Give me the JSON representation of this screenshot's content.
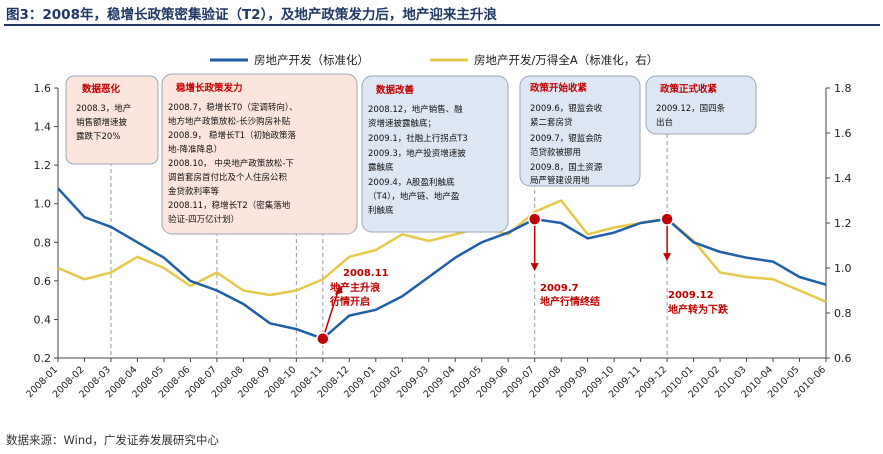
{
  "title": "图3：2008年，稳增长政策密集验证（T2），及地产政策发力后，地产迎来主升浪",
  "source": "数据来源：Wind，广发证券发展研究中心",
  "colors": {
    "series1": "#1f5fa8",
    "series2": "#e6c94a",
    "box_red_fill": "#fbe5dc",
    "box_blue_fill": "#dde6f3",
    "box_border": "#9aa7b8",
    "accent": "#c00000"
  },
  "legend": [
    "房地产开发（标准化）",
    "房地产开发/万得全A（标准化，右）"
  ],
  "boxes": [
    {
      "title": "数据恶化",
      "lines": [
        "2008.3，地产",
        "销售额增速披",
        "露跌下20%"
      ]
    },
    {
      "title": "稳增长政策发力",
      "lines": [
        "2008.7，稳增长T0（定调转向）、",
        "地方地产政策放松-长沙购房补贴",
        "2008.9，  稳增长T1（初始政策落",
        "地-降准降息）",
        "2008.10，  中央地产政策放松-下",
        "调首套房首付比及个人住房公积",
        "金贷款利率等",
        "2008.11，稳增长T2（密集落地",
        "验证-四万亿计划）"
      ]
    },
    {
      "title": "数据改善",
      "lines": [
        "2008.12，地产销售、融",
        "资增速披露触底；",
        "2009.1，社融上行拐点T3",
        "2009.3，地产投资增速披",
        "露触底",
        "2009.4，A股盈利触底",
        "（T4），地产链、地产盈",
        "利触底"
      ]
    },
    {
      "title": "政策开始收紧",
      "lines": [
        "2009.6，银监会收",
        "紧二套房贷",
        "2009.7，银监会防",
        "范贷款被挪用",
        "2009.8，国土资源",
        "局严管建设用地"
      ]
    },
    {
      "title": "政策正式收紧",
      "lines": [
        "2009.12，国四条",
        "出台"
      ]
    }
  ],
  "annotations": [
    {
      "date": "2008.11",
      "text": "地产主升浪",
      "text2": "行情开启"
    },
    {
      "date": "2009.7",
      "text": "地产行情终结"
    },
    {
      "date": "2009.12",
      "text": "地产转为下跌"
    }
  ],
  "chart_data": {
    "type": "line",
    "x": [
      "2008-01",
      "2008-02",
      "2008-03",
      "2008-04",
      "2008-05",
      "2008-06",
      "2008-07",
      "2008-08",
      "2008-09",
      "2008-10",
      "2008-11",
      "2008-12",
      "2009-01",
      "2009-02",
      "2009-03",
      "2009-04",
      "2009-05",
      "2009-06",
      "2009-07",
      "2009-08",
      "2009-09",
      "2009-10",
      "2009-11",
      "2009-12",
      "2010-01",
      "2010-02",
      "2010-03",
      "2010-04",
      "2010-05",
      "2010-06"
    ],
    "xlabel": "",
    "ylabel": "",
    "ylim": [
      0.2,
      1.6
    ],
    "y2lim": [
      0.6,
      1.8
    ],
    "yticks": [
      "0.2",
      "0.4",
      "0.6",
      "0.8",
      "1.0",
      "1.2",
      "1.4",
      "1.6"
    ],
    "y2ticks": [
      "0.6",
      "0.8",
      "1.0",
      "1.2",
      "1.4",
      "1.6",
      "1.8"
    ],
    "series": [
      {
        "name": "房地产开发（标准化）",
        "axis": "left",
        "values": [
          1.08,
          0.93,
          0.88,
          0.8,
          0.72,
          0.6,
          0.55,
          0.48,
          0.38,
          0.35,
          0.3,
          0.42,
          0.45,
          0.52,
          0.62,
          0.72,
          0.8,
          0.85,
          0.92,
          0.9,
          0.82,
          0.85,
          0.9,
          0.92,
          0.8,
          0.75,
          0.72,
          0.7,
          0.62,
          0.58
        ]
      },
      {
        "name": "房地产开发/万得全A（标准化，右）",
        "axis": "right",
        "values": [
          1.0,
          0.95,
          0.98,
          1.05,
          1.0,
          0.92,
          0.98,
          0.9,
          0.88,
          0.9,
          0.95,
          1.05,
          1.08,
          1.15,
          1.12,
          1.15,
          1.18,
          1.15,
          1.25,
          1.3,
          1.15,
          1.18,
          1.2,
          1.22,
          1.12,
          0.98,
          0.96,
          0.95,
          0.9,
          0.85
        ]
      }
    ],
    "markers": [
      {
        "x": "2008-11",
        "series": 0,
        "value": 0.3
      },
      {
        "x": "2009-07",
        "series": 0,
        "value": 0.92
      },
      {
        "x": "2009-12",
        "series": 0,
        "value": 0.92
      }
    ],
    "vlines": [
      "2008-03",
      "2008-07",
      "2008-10",
      "2008-11",
      "2009-07",
      "2009-12"
    ],
    "grid": false,
    "legend_position": "top-center"
  }
}
